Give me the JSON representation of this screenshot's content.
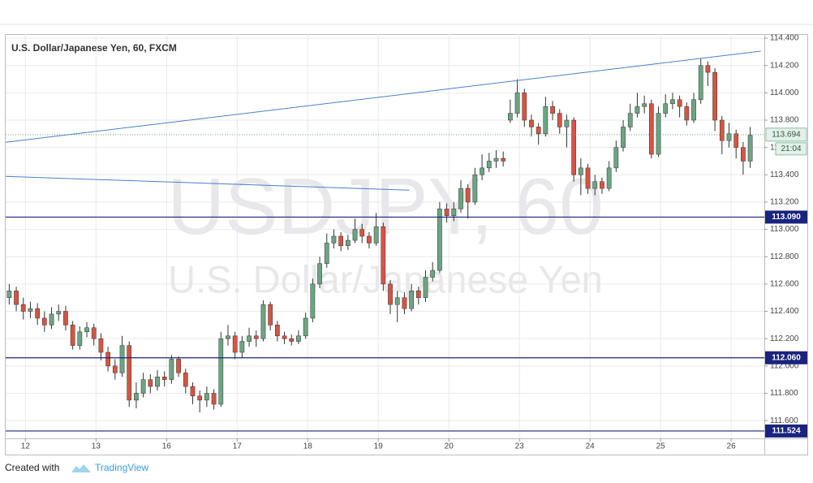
{
  "chart_data": {
    "type": "candlestick",
    "title": "U.S. Dollar/Japanese Yen, 60, FXCM",
    "watermark_symbol": "USDJPY, 60",
    "watermark_name": "U.S. Dollar/Japanese Yen",
    "up_color": "#6ba583",
    "down_color": "#d75442",
    "wick_color": "#333333",
    "grid": true,
    "xlim": [
      0,
      107.5
    ],
    "xticks": [
      {
        "value": 2.8,
        "label": "12"
      },
      {
        "value": 12.8,
        "label": "13"
      },
      {
        "value": 22.8,
        "label": "16"
      },
      {
        "value": 32.8,
        "label": "17"
      },
      {
        "value": 42.8,
        "label": "18"
      },
      {
        "value": 52.8,
        "label": "19"
      },
      {
        "value": 62.8,
        "label": "20"
      },
      {
        "value": 72.8,
        "label": "23"
      },
      {
        "value": 82.8,
        "label": "24"
      },
      {
        "value": 92.8,
        "label": "25"
      },
      {
        "value": 102.8,
        "label": "26"
      }
    ],
    "ylim": [
      111.47,
      114.43
    ],
    "yticks": [
      {
        "value": 111.6,
        "label": "111.600"
      },
      {
        "value": 111.8,
        "label": "111.800"
      },
      {
        "value": 112.0,
        "label": "112.000"
      },
      {
        "value": 112.2,
        "label": "112.200"
      },
      {
        "value": 112.4,
        "label": "112.400"
      },
      {
        "value": 112.6,
        "label": "112.600"
      },
      {
        "value": 112.8,
        "label": "112.800"
      },
      {
        "value": 113.0,
        "label": "113.000"
      },
      {
        "value": 113.2,
        "label": "113.200"
      },
      {
        "value": 113.4,
        "label": "113.400"
      },
      {
        "value": 113.6,
        "label": "113.600"
      },
      {
        "value": 113.8,
        "label": "113.800"
      },
      {
        "value": 114.0,
        "label": "114.000"
      },
      {
        "value": 114.2,
        "label": "114.200"
      },
      {
        "value": 114.4,
        "label": "114.400"
      }
    ],
    "open": [
      112.5,
      112.55,
      112.45,
      112.4,
      112.42,
      112.35,
      112.3,
      112.38,
      112.4,
      112.3,
      112.15,
      112.25,
      112.28,
      112.2,
      112.1,
      112.0,
      111.95,
      112.15,
      111.75,
      111.8,
      111.9,
      111.85,
      111.92,
      111.9,
      112.05,
      111.95,
      111.85,
      111.78,
      111.75,
      111.8,
      111.72,
      112.2,
      112.22,
      112.1,
      112.18,
      112.22,
      112.2,
      112.45,
      112.3,
      112.22,
      112.2,
      112.18,
      112.22,
      112.35,
      112.6,
      112.75,
      112.9,
      112.95,
      112.88,
      112.92,
      113.0,
      112.95,
      112.9,
      113.02,
      112.6,
      112.45,
      112.5,
      112.42,
      112.55,
      112.5,
      112.65,
      112.7,
      113.15,
      113.1,
      113.15,
      113.3,
      113.2,
      113.4,
      113.45,
      113.5,
      113.52,
      113.8,
      113.85,
      114.0,
      113.8,
      113.75,
      113.7,
      113.9,
      113.85,
      113.75,
      113.8,
      113.4,
      113.45,
      113.3,
      113.35,
      113.3,
      113.45,
      113.6,
      113.75,
      113.85,
      113.9,
      113.92,
      113.55,
      113.85,
      113.92,
      113.95,
      113.9,
      113.8,
      113.95,
      114.2,
      114.15,
      113.8,
      113.65,
      113.7,
      113.6,
      113.5
    ],
    "high": [
      112.6,
      112.58,
      112.5,
      112.47,
      112.46,
      112.4,
      112.43,
      112.45,
      112.44,
      112.33,
      112.29,
      112.32,
      112.31,
      112.24,
      112.14,
      112.05,
      112.22,
      112.18,
      111.88,
      111.95,
      111.94,
      111.97,
      111.96,
      112.08,
      112.07,
      111.98,
      111.88,
      111.82,
      111.85,
      111.83,
      112.25,
      112.3,
      112.25,
      112.22,
      112.28,
      112.26,
      112.48,
      112.47,
      112.33,
      112.25,
      112.23,
      112.26,
      112.39,
      112.64,
      112.8,
      112.97,
      113.0,
      112.98,
      112.96,
      113.08,
      113.04,
      112.98,
      113.12,
      113.05,
      112.63,
      112.55,
      112.54,
      112.6,
      112.58,
      112.7,
      112.76,
      113.2,
      113.19,
      113.2,
      113.36,
      113.33,
      113.45,
      113.55,
      113.56,
      113.58,
      113.57,
      113.95,
      114.1,
      114.03,
      113.84,
      113.78,
      113.97,
      113.94,
      113.88,
      113.84,
      113.82,
      113.52,
      113.48,
      113.4,
      113.38,
      113.5,
      113.65,
      113.8,
      113.92,
      114.0,
      113.98,
      113.95,
      113.9,
      113.99,
      114.0,
      113.98,
      113.93,
      114.0,
      114.25,
      114.23,
      114.18,
      113.83,
      113.78,
      113.73,
      113.64,
      113.75
    ],
    "low": [
      112.45,
      112.4,
      112.34,
      112.35,
      112.3,
      112.25,
      112.27,
      112.33,
      112.26,
      112.12,
      112.12,
      112.21,
      112.15,
      112.04,
      111.96,
      111.9,
      111.92,
      111.7,
      111.69,
      111.77,
      111.8,
      111.82,
      111.85,
      111.87,
      111.92,
      111.8,
      111.72,
      111.66,
      111.7,
      111.68,
      111.7,
      112.15,
      112.05,
      112.06,
      112.14,
      112.14,
      112.18,
      112.26,
      112.18,
      112.16,
      112.15,
      112.16,
      112.2,
      112.32,
      112.57,
      112.72,
      112.86,
      112.84,
      112.85,
      112.9,
      112.9,
      112.86,
      112.88,
      112.55,
      112.38,
      112.32,
      112.38,
      112.4,
      112.45,
      112.47,
      112.62,
      112.68,
      113.05,
      113.06,
      113.12,
      113.08,
      113.18,
      113.36,
      113.42,
      113.45,
      113.46,
      113.78,
      113.82,
      113.75,
      113.68,
      113.62,
      113.68,
      113.8,
      113.7,
      113.6,
      113.35,
      113.25,
      113.26,
      113.25,
      113.26,
      113.28,
      113.42,
      113.57,
      113.72,
      113.82,
      113.85,
      113.52,
      113.53,
      113.82,
      113.88,
      113.82,
      113.76,
      113.78,
      113.92,
      114.05,
      113.72,
      113.55,
      113.6,
      113.52,
      113.4,
      113.45
    ],
    "close": [
      112.55,
      112.45,
      112.4,
      112.42,
      112.35,
      112.3,
      112.38,
      112.4,
      112.3,
      112.15,
      112.25,
      112.28,
      112.2,
      112.1,
      112.0,
      111.95,
      112.15,
      111.75,
      111.8,
      111.9,
      111.85,
      111.92,
      111.9,
      112.05,
      111.95,
      111.85,
      111.78,
      111.75,
      111.8,
      111.72,
      112.2,
      112.22,
      112.1,
      112.18,
      112.22,
      112.2,
      112.45,
      112.3,
      112.22,
      112.2,
      112.18,
      112.22,
      112.35,
      112.6,
      112.75,
      112.9,
      112.95,
      112.88,
      112.92,
      113.0,
      112.95,
      112.9,
      113.02,
      112.6,
      112.45,
      112.5,
      112.42,
      112.55,
      112.5,
      112.65,
      112.7,
      113.15,
      113.1,
      113.15,
      113.3,
      113.2,
      113.4,
      113.45,
      113.5,
      113.52,
      113.5,
      113.85,
      114.0,
      113.8,
      113.75,
      113.7,
      113.9,
      113.85,
      113.75,
      113.8,
      113.4,
      113.45,
      113.3,
      113.35,
      113.3,
      113.45,
      113.6,
      113.75,
      113.85,
      113.9,
      113.92,
      113.55,
      113.85,
      113.92,
      113.95,
      113.9,
      113.8,
      113.95,
      114.2,
      114.15,
      113.8,
      113.65,
      113.7,
      113.6,
      113.5,
      113.69
    ],
    "levels": [
      {
        "value": 113.09,
        "label": "113.090"
      },
      {
        "value": 112.06,
        "label": "112.060"
      },
      {
        "value": 111.524,
        "label": "111.524"
      }
    ],
    "level_color": "#1a237e",
    "last_price": {
      "value": 113.694,
      "label": "113.694"
    },
    "countdown": "21:04",
    "trend_lines": [
      {
        "x": [
          0,
          107
        ],
        "y": [
          113.638,
          114.305
        ]
      },
      {
        "x": [
          0,
          57.2
        ],
        "y": [
          113.388,
          113.287
        ]
      }
    ],
    "trend_color": "#4a7fc9"
  },
  "footer": {
    "prefix": "Created with",
    "brand": "TradingView"
  }
}
